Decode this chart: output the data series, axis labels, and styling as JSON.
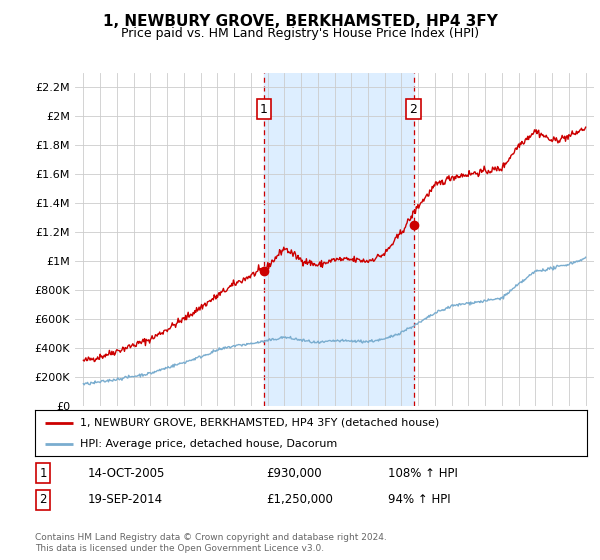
{
  "title": "1, NEWBURY GROVE, BERKHAMSTED, HP4 3FY",
  "subtitle": "Price paid vs. HM Land Registry's House Price Index (HPI)",
  "legend_line1": "1, NEWBURY GROVE, BERKHAMSTED, HP4 3FY (detached house)",
  "legend_line2": "HPI: Average price, detached house, Dacorum",
  "footnote": "Contains HM Land Registry data © Crown copyright and database right 2024.\nThis data is licensed under the Open Government Licence v3.0.",
  "transaction1": {
    "label": "1",
    "date": "14-OCT-2005",
    "price": "£930,000",
    "hpi": "108% ↑ HPI",
    "x_year": 2005.79,
    "y_val": 930000
  },
  "transaction2": {
    "label": "2",
    "date": "19-SEP-2014",
    "price": "£1,250,000",
    "hpi": "94% ↑ HPI",
    "x_year": 2014.72,
    "y_val": 1250000
  },
  "red_color": "#cc0000",
  "blue_color": "#7aadcf",
  "shaded_color": "#ddeeff",
  "grid_color": "#cccccc",
  "ylim": [
    0,
    2300000
  ],
  "yticks": [
    0,
    200000,
    400000,
    600000,
    800000,
    1000000,
    1200000,
    1400000,
    1600000,
    1800000,
    2000000,
    2200000
  ],
  "ytick_labels": [
    "£0",
    "£200K",
    "£400K",
    "£600K",
    "£800K",
    "£1M",
    "£1.2M",
    "£1.4M",
    "£1.6M",
    "£1.8M",
    "£2M",
    "£2.2M"
  ],
  "xlim": [
    1994.5,
    2025.5
  ],
  "xticks": [
    1995,
    1996,
    1997,
    1998,
    1999,
    2000,
    2001,
    2002,
    2003,
    2004,
    2005,
    2006,
    2007,
    2008,
    2009,
    2010,
    2011,
    2012,
    2013,
    2014,
    2015,
    2016,
    2017,
    2018,
    2019,
    2020,
    2021,
    2022,
    2023,
    2024,
    2025
  ],
  "red_base": {
    "1995": 310000,
    "1996": 340000,
    "1997": 380000,
    "1998": 420000,
    "1999": 460000,
    "2000": 530000,
    "2001": 600000,
    "2002": 680000,
    "2003": 760000,
    "2004": 840000,
    "2005": 900000,
    "2006": 960000,
    "2007": 1090000,
    "2008": 1010000,
    "2009": 970000,
    "2010": 1010000,
    "2011": 1010000,
    "2012": 1000000,
    "2013": 1050000,
    "2014": 1200000,
    "2015": 1380000,
    "2016": 1520000,
    "2017": 1580000,
    "2018": 1600000,
    "2019": 1620000,
    "2020": 1640000,
    "2021": 1800000,
    "2022": 1900000,
    "2023": 1830000,
    "2024": 1860000,
    "2025": 1920000
  },
  "blue_base": {
    "1995": 150000,
    "1996": 165000,
    "1997": 185000,
    "1998": 205000,
    "1999": 225000,
    "2000": 265000,
    "2001": 300000,
    "2002": 340000,
    "2003": 385000,
    "2004": 415000,
    "2005": 430000,
    "2006": 450000,
    "2007": 475000,
    "2008": 455000,
    "2009": 435000,
    "2010": 450000,
    "2011": 448000,
    "2012": 445000,
    "2013": 460000,
    "2014": 510000,
    "2015": 570000,
    "2016": 640000,
    "2017": 690000,
    "2018": 710000,
    "2019": 725000,
    "2020": 745000,
    "2021": 840000,
    "2022": 930000,
    "2023": 950000,
    "2024": 980000,
    "2025": 1020000
  }
}
